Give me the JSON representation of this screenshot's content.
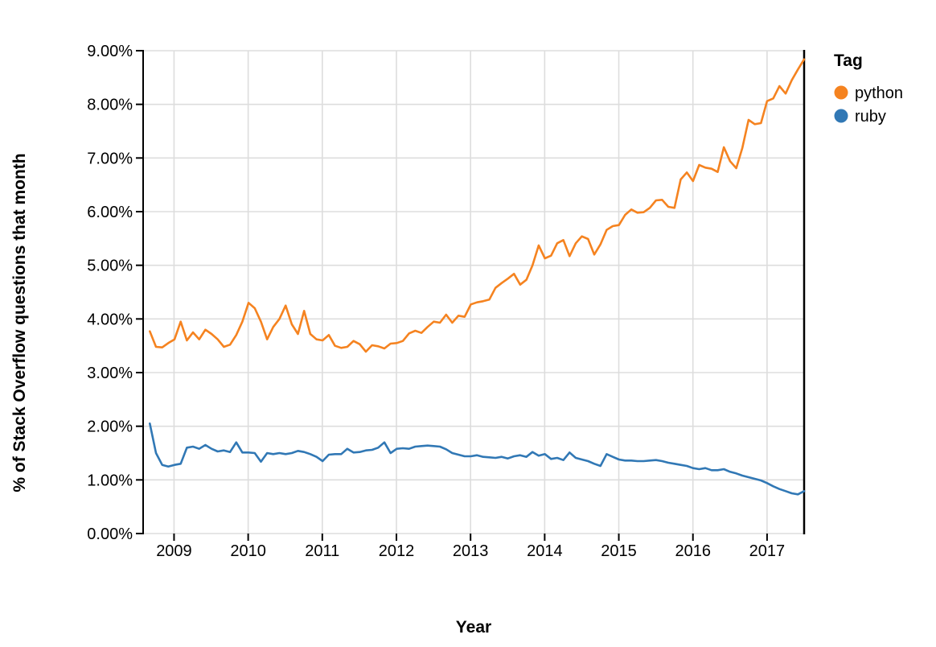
{
  "chart_data": {
    "type": "line",
    "title": "",
    "xlabel": "Year",
    "ylabel": "% of Stack Overflow questions that month",
    "x_unit": "month",
    "x_start": "2008-09",
    "x_end": "2017-07",
    "xlim": [
      2008.583,
      2017.5
    ],
    "ylim": [
      0,
      9
    ],
    "grid": true,
    "x_ticks": [
      2009,
      2010,
      2011,
      2012,
      2013,
      2014,
      2015,
      2016,
      2017
    ],
    "x_tick_labels": [
      "2009",
      "2010",
      "2011",
      "2012",
      "2013",
      "2014",
      "2015",
      "2016",
      "2017"
    ],
    "y_ticks": [
      0,
      1,
      2,
      3,
      4,
      5,
      6,
      7,
      8,
      9
    ],
    "y_tick_labels": [
      "0.00%",
      "1.00%",
      "2.00%",
      "3.00%",
      "4.00%",
      "5.00%",
      "6.00%",
      "7.00%",
      "8.00%",
      "9.00%"
    ],
    "legend": {
      "title": "Tag",
      "position": "right",
      "entries": [
        {
          "label": "python",
          "color": "#f58320"
        },
        {
          "label": "ruby",
          "color": "#3178b5"
        }
      ]
    },
    "colors": {
      "gridline": "#dddddd",
      "axis": "#000000",
      "text": "#000000",
      "background": "#ffffff"
    },
    "series": [
      {
        "name": "python",
        "color": "#f58320",
        "values": [
          3.77,
          3.48,
          3.47,
          3.55,
          3.62,
          3.95,
          3.6,
          3.75,
          3.62,
          3.8,
          3.72,
          3.62,
          3.48,
          3.52,
          3.7,
          3.95,
          4.3,
          4.2,
          3.95,
          3.62,
          3.85,
          4.0,
          4.25,
          3.9,
          3.72,
          4.15,
          3.72,
          3.62,
          3.6,
          3.7,
          3.5,
          3.46,
          3.48,
          3.59,
          3.53,
          3.39,
          3.51,
          3.49,
          3.45,
          3.54,
          3.55,
          3.59,
          3.73,
          3.78,
          3.74,
          3.85,
          3.95,
          3.93,
          4.08,
          3.93,
          4.06,
          4.04,
          4.27,
          4.31,
          4.33,
          4.36,
          4.58,
          4.67,
          4.75,
          4.84,
          4.64,
          4.73,
          5.0,
          5.37,
          5.13,
          5.18,
          5.41,
          5.47,
          5.17,
          5.41,
          5.54,
          5.49,
          5.2,
          5.39,
          5.66,
          5.73,
          5.75,
          5.94,
          6.04,
          5.98,
          5.99,
          6.07,
          6.21,
          6.22,
          6.09,
          6.07,
          6.6,
          6.73,
          6.57,
          6.87,
          6.82,
          6.8,
          6.74,
          7.2,
          6.94,
          6.81,
          7.19,
          7.71,
          7.63,
          7.65,
          8.06,
          8.11,
          8.34,
          8.2,
          8.45,
          8.65,
          8.84
        ]
      },
      {
        "name": "ruby",
        "color": "#3178b5",
        "values": [
          2.05,
          1.5,
          1.28,
          1.25,
          1.28,
          1.3,
          1.6,
          1.62,
          1.58,
          1.65,
          1.58,
          1.53,
          1.55,
          1.52,
          1.7,
          1.51,
          1.51,
          1.5,
          1.34,
          1.5,
          1.48,
          1.5,
          1.48,
          1.5,
          1.54,
          1.52,
          1.48,
          1.43,
          1.35,
          1.47,
          1.48,
          1.48,
          1.58,
          1.51,
          1.52,
          1.55,
          1.56,
          1.6,
          1.7,
          1.5,
          1.58,
          1.59,
          1.58,
          1.62,
          1.63,
          1.64,
          1.63,
          1.62,
          1.57,
          1.5,
          1.47,
          1.44,
          1.44,
          1.46,
          1.43,
          1.42,
          1.41,
          1.43,
          1.4,
          1.44,
          1.46,
          1.43,
          1.52,
          1.45,
          1.48,
          1.39,
          1.41,
          1.37,
          1.51,
          1.41,
          1.38,
          1.35,
          1.3,
          1.26,
          1.48,
          1.43,
          1.38,
          1.36,
          1.36,
          1.35,
          1.35,
          1.36,
          1.37,
          1.35,
          1.32,
          1.3,
          1.28,
          1.26,
          1.22,
          1.2,
          1.22,
          1.18,
          1.18,
          1.2,
          1.15,
          1.12,
          1.08,
          1.05,
          1.02,
          0.99,
          0.94,
          0.88,
          0.83,
          0.79,
          0.75,
          0.73,
          0.79
        ]
      }
    ]
  }
}
